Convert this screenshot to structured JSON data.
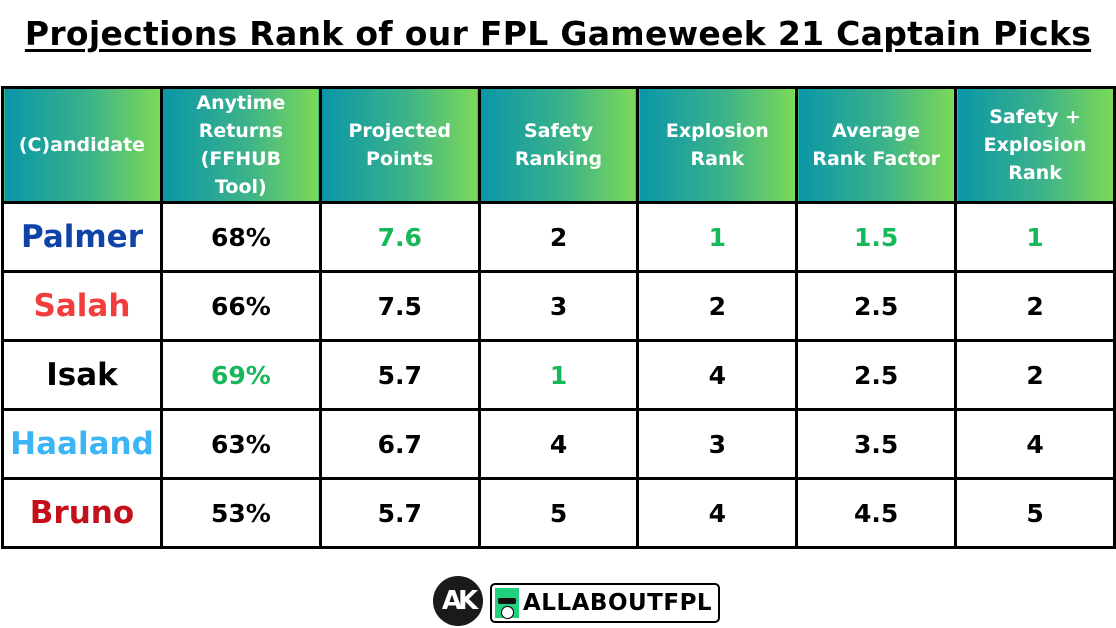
{
  "title": "Projections Rank of our FPL Gameweek 21 Captain Picks",
  "colors": {
    "header_gradient_start": "#0a96a8",
    "header_gradient_end": "#7cd957",
    "highlight_green": "#16b85a",
    "palmer": "#1043a8",
    "salah": "#f23d3d",
    "isak": "#000000",
    "haaland": "#3db5f5",
    "bruno": "#c4101a"
  },
  "table": {
    "headers": [
      "(C)andidate",
      "Anytime Returns (FFHUB Tool)",
      "Projected Points",
      "Safety Ranking",
      "Explosion Rank",
      "Average Rank Factor",
      "Safety + Explosion Rank"
    ],
    "rows": [
      {
        "name": "Palmer",
        "name_color": "#1043a8",
        "anytime": "68%",
        "projected": "7.6",
        "safety": "2",
        "explosion": "1",
        "avg_rank": "1.5",
        "combined": "1",
        "highlight": [
          "projected",
          "explosion",
          "avg_rank",
          "combined"
        ]
      },
      {
        "name": "Salah",
        "name_color": "#f23d3d",
        "anytime": "66%",
        "projected": "7.5",
        "safety": "3",
        "explosion": "2",
        "avg_rank": "2.5",
        "combined": "2",
        "highlight": []
      },
      {
        "name": "Isak",
        "name_color": "#000000",
        "anytime": "69%",
        "projected": "5.7",
        "safety": "1",
        "explosion": "4",
        "avg_rank": "2.5",
        "combined": "2",
        "highlight": [
          "anytime",
          "safety"
        ]
      },
      {
        "name": "Haaland",
        "name_color": "#3db5f5",
        "anytime": "63%",
        "projected": "6.7",
        "safety": "4",
        "explosion": "3",
        "avg_rank": "3.5",
        "combined": "4",
        "highlight": []
      },
      {
        "name": "Bruno",
        "name_color": "#c4101a",
        "anytime": "53%",
        "projected": "5.7",
        "safety": "5",
        "explosion": "4",
        "avg_rank": "4.5",
        "combined": "5",
        "highlight": []
      }
    ]
  },
  "chart_data": {
    "type": "table",
    "title": "Projections Rank of our FPL Gameweek 21 Captain Picks",
    "columns": [
      "(C)andidate",
      "Anytime Returns (FFHUB Tool)",
      "Projected Points",
      "Safety Ranking",
      "Explosion Rank",
      "Average Rank Factor",
      "Safety + Explosion Rank"
    ],
    "rows": [
      [
        "Palmer",
        "68%",
        7.6,
        2,
        1,
        1.5,
        1
      ],
      [
        "Salah",
        "66%",
        7.5,
        3,
        2,
        2.5,
        2
      ],
      [
        "Isak",
        "69%",
        5.7,
        1,
        4,
        2.5,
        2
      ],
      [
        "Haaland",
        "63%",
        6.7,
        4,
        3,
        3.5,
        4
      ],
      [
        "Bruno",
        "53%",
        5.7,
        5,
        4,
        4.5,
        5
      ]
    ]
  },
  "footer": {
    "ak_logo": "AK",
    "brand": "ALLABOUTFPL",
    "brand_icon": "football-boot-icon"
  }
}
